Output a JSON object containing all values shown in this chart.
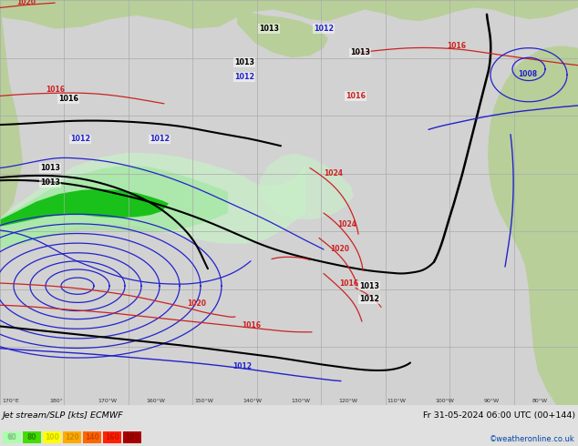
{
  "title_left": "Jet stream/SLP [kts] ECMWF",
  "title_right": "Fr 31-05-2024 06:00 UTC (00+144)",
  "credit": "©weatheronline.co.uk",
  "map_bg": "#d2d2d2",
  "land_color": "#b8cf9a",
  "grid_color": "#aaaaaa",
  "bottom_bar_color": "#e0e0e0",
  "isobar_black": "#000000",
  "isobar_blue": "#2222cc",
  "isobar_red": "#cc2222",
  "jet_green_dark": "#00bb00",
  "jet_green_mid": "#90e890",
  "jet_green_light": "#c8f0c8",
  "legend_colors": [
    "#aaffaa",
    "#44dd00",
    "#ffff00",
    "#ffaa00",
    "#ff6600",
    "#ff2200",
    "#aa0000"
  ],
  "legend_labels": [
    "60",
    "80",
    "100",
    "120",
    "140",
    "160",
    "180"
  ],
  "figw": 6.34,
  "figh": 4.9,
  "dpi": 100
}
